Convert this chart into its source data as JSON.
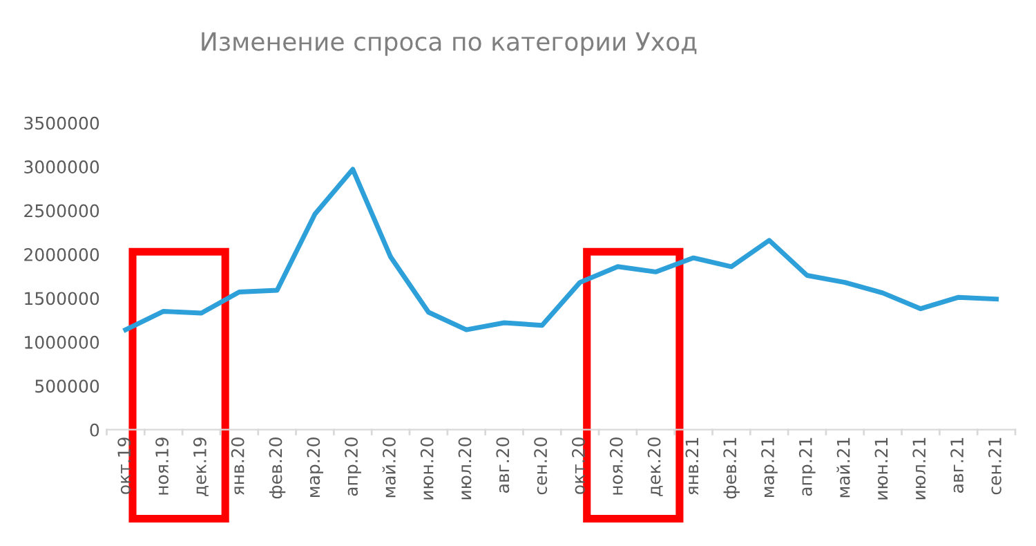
{
  "chart_data": {
    "type": "line",
    "title": "Изменение спроса по категории Уход",
    "categories": [
      "окт.19",
      "ноя.19",
      "дек.19",
      "янв.20",
      "фев.20",
      "мар.20",
      "апр.20",
      "май.20",
      "июн.20",
      "июл.20",
      "авг.20",
      "сен.20",
      "окт.20",
      "ноя.20",
      "дек.20",
      "янв.21",
      "фев.21",
      "мар.21",
      "апр.21",
      "май.21",
      "июн.21",
      "июл.21",
      "авг.21",
      "сен.21"
    ],
    "series": [
      {
        "color": "#2d9fd9",
        "values": [
          1140000,
          1350000,
          1330000,
          1570000,
          1590000,
          2460000,
          2970000,
          1970000,
          1340000,
          1140000,
          1220000,
          1190000,
          1680000,
          1860000,
          1800000,
          1960000,
          1860000,
          2160000,
          1760000,
          1680000,
          1560000,
          1380000,
          1510000,
          1490000
        ]
      }
    ],
    "ylim": [
      0,
      3500000
    ],
    "yticks": [
      0,
      500000,
      1000000,
      1500000,
      2000000,
      2500000,
      3000000,
      3500000
    ],
    "grid": false,
    "legend": false,
    "marker": "none",
    "line_style": "solid"
  }
}
